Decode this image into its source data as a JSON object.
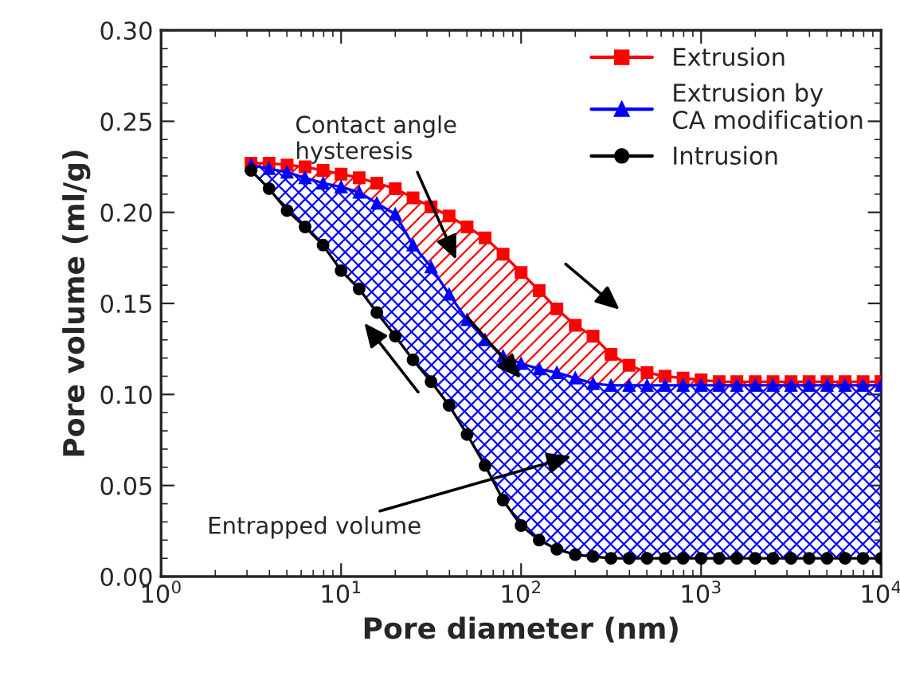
{
  "chart_data": {
    "type": "line",
    "xlabel": "Pore diameter (nm)",
    "ylabel": "Pore volume (ml/g)",
    "log": "x",
    "xlim": [
      1,
      10000
    ],
    "ylim": [
      0,
      0.3
    ],
    "xticks": [
      {
        "value": 1,
        "label": "10$^{0}$"
      },
      {
        "value": 10,
        "label": "10$^{1}$"
      },
      {
        "value": 100,
        "label": "10$^{2}$"
      },
      {
        "value": 1000,
        "label": "10$^{3}$"
      },
      {
        "value": 10000,
        "label": "10$^{4}$"
      }
    ],
    "yticks": [
      {
        "value": 0,
        "label": "0.00"
      },
      {
        "value": 0.05,
        "label": "0.05"
      },
      {
        "value": 0.1,
        "label": "0.10"
      },
      {
        "value": 0.15,
        "label": "0.15"
      },
      {
        "value": 0.2,
        "label": "0.20"
      },
      {
        "value": 0.25,
        "label": "0.25"
      },
      {
        "value": 0.3,
        "label": "0.30"
      }
    ],
    "x": [
      3.16,
      3.98,
      5.01,
      6.31,
      7.94,
      10,
      12.6,
      15.8,
      20,
      25.1,
      31.6,
      39.8,
      50.1,
      63.1,
      79.4,
      100,
      126,
      158,
      200,
      251,
      316,
      398,
      501,
      631,
      794,
      1000,
      1260,
      1580,
      2000,
      2510,
      3160,
      3980,
      5010,
      6310,
      7940,
      10000
    ],
    "series": [
      {
        "name": "Extrusion",
        "color": "#ff0000",
        "marker": "square",
        "values": [
          0.227,
          0.227,
          0.226,
          0.225,
          0.223,
          0.221,
          0.219,
          0.216,
          0.213,
          0.208,
          0.203,
          0.198,
          0.192,
          0.186,
          0.177,
          0.167,
          0.157,
          0.147,
          0.138,
          0.132,
          0.122,
          0.116,
          0.112,
          0.11,
          0.109,
          0.108,
          0.107,
          0.107,
          0.107,
          0.107,
          0.107,
          0.107,
          0.107,
          0.107,
          0.107,
          0.107
        ],
        "lower": [
          0.226,
          0.224,
          0.222,
          0.219,
          0.216,
          0.214,
          0.211,
          0.205,
          0.199,
          0.182,
          0.17,
          0.155,
          0.141,
          0.13,
          0.121,
          0.117,
          0.114,
          0.112,
          0.109,
          0.106,
          0.105,
          0.105,
          0.105,
          0.105,
          0.105,
          0.105,
          0.105,
          0.105,
          0.105,
          0.105,
          0.105,
          0.105,
          0.105,
          0.105,
          0.105,
          0.105
        ],
        "upper": [
          0.227,
          0.227,
          0.226,
          0.225,
          0.223,
          0.221,
          0.219,
          0.216,
          0.213,
          0.208,
          0.203,
          0.198,
          0.192,
          0.186,
          0.177,
          0.167,
          0.157,
          0.147,
          0.138,
          0.132,
          0.122,
          0.116,
          0.112,
          0.11,
          0.109,
          0.108,
          0.107,
          0.107,
          0.107,
          0.107,
          0.107,
          0.107,
          0.107,
          0.107,
          0.107,
          0.107
        ]
      },
      {
        "name": "Extrusion by\nCA modification",
        "color": "#0000ff",
        "marker": "triangle",
        "values": [
          0.226,
          0.224,
          0.222,
          0.219,
          0.216,
          0.214,
          0.211,
          0.205,
          0.199,
          0.182,
          0.17,
          0.155,
          0.141,
          0.13,
          0.121,
          0.117,
          0.114,
          0.112,
          0.109,
          0.106,
          0.105,
          0.105,
          0.105,
          0.105,
          0.105,
          0.105,
          0.105,
          0.105,
          0.105,
          0.105,
          0.105,
          0.105,
          0.105,
          0.105,
          0.105,
          0.105
        ],
        "lower": [
          0.223,
          0.213,
          0.201,
          0.192,
          0.182,
          0.168,
          0.158,
          0.145,
          0.132,
          0.119,
          0.107,
          0.094,
          0.078,
          0.061,
          0.042,
          0.028,
          0.02,
          0.015,
          0.012,
          0.011,
          0.01,
          0.01,
          0.01,
          0.01,
          0.01,
          0.01,
          0.01,
          0.01,
          0.01,
          0.01,
          0.01,
          0.01,
          0.01,
          0.01,
          0.01,
          0.01
        ],
        "upper": [
          0.226,
          0.224,
          0.222,
          0.219,
          0.216,
          0.214,
          0.211,
          0.205,
          0.199,
          0.182,
          0.17,
          0.155,
          0.141,
          0.13,
          0.121,
          0.117,
          0.114,
          0.112,
          0.109,
          0.106,
          0.105,
          0.105,
          0.105,
          0.105,
          0.105,
          0.105,
          0.105,
          0.105,
          0.105,
          0.105,
          0.105,
          0.105,
          0.105,
          0.105,
          0.105,
          0.105
        ]
      },
      {
        "name": "Intrusion",
        "color": "#000000",
        "marker": "circle",
        "values": [
          0.223,
          0.213,
          0.201,
          0.192,
          0.182,
          0.168,
          0.158,
          0.145,
          0.132,
          0.119,
          0.107,
          0.094,
          0.078,
          0.061,
          0.042,
          0.028,
          0.02,
          0.015,
          0.012,
          0.011,
          0.01,
          0.01,
          0.01,
          0.01,
          0.01,
          0.01,
          0.01,
          0.01,
          0.01,
          0.01,
          0.01,
          0.01,
          0.01,
          0.01,
          0.01,
          0.01
        ]
      }
    ],
    "annotations": [
      "Contact angle\nhysteresis",
      "Entrapped volume"
    ],
    "legend": "top right",
    "grid": false
  }
}
